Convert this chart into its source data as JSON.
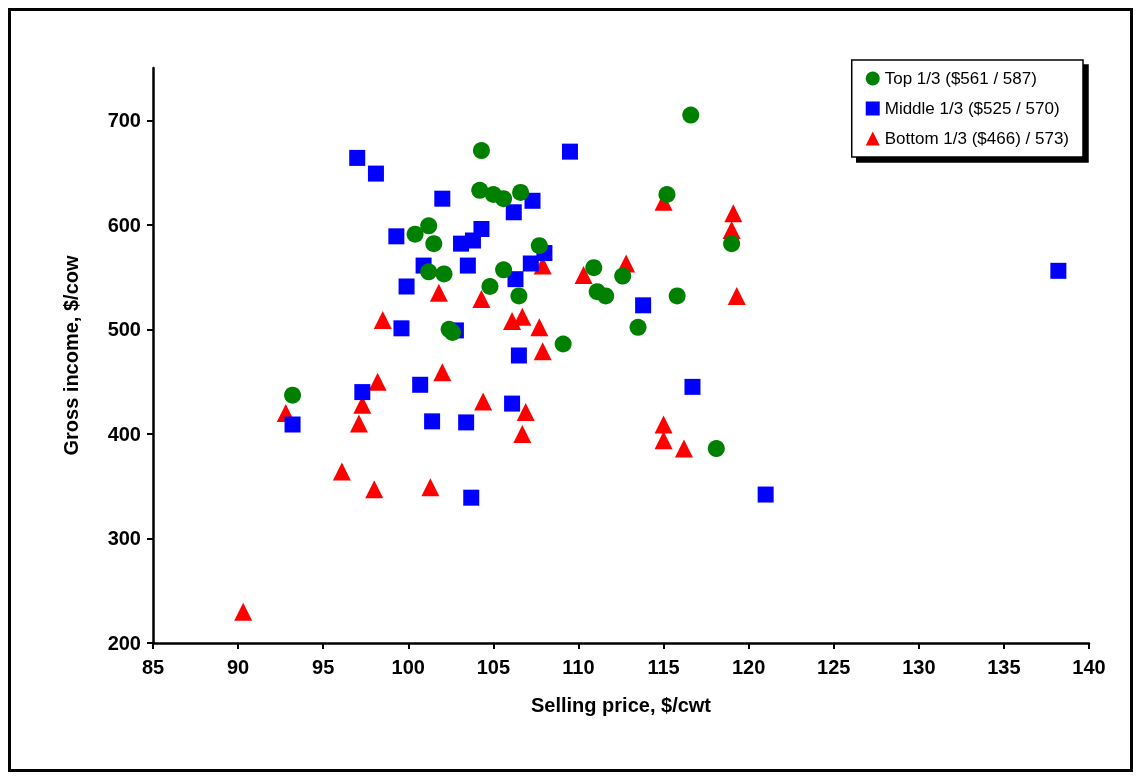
{
  "chart_data": {
    "type": "scatter",
    "xlabel": "Selling price, $/cwt",
    "ylabel": "Gross income, $/cow",
    "xlim": [
      85,
      140
    ],
    "xticks": [
      85,
      90,
      95,
      100,
      105,
      110,
      115,
      120,
      125,
      130,
      135,
      140
    ],
    "ylim": [
      200,
      750
    ],
    "yticks": [
      200,
      300,
      400,
      500,
      600,
      700
    ],
    "grid": false,
    "legend": "top right",
    "series": [
      {
        "name": "Top 1/3 ($561 / 587)",
        "color": "#008000",
        "marker": "circle",
        "x": [
          93.2,
          104.3,
          104.2,
          105.0,
          105.6,
          106.6,
          100.4,
          101.2,
          101.5,
          101.2,
          102.1,
          105.6,
          104.8,
          106.5,
          107.7,
          102.4,
          102.6,
          109.1,
          116.6,
          115.2,
          119.0,
          110.9,
          112.6,
          111.1,
          111.6,
          115.8,
          113.5,
          118.1
        ],
        "values": [
          437,
          671,
          633,
          629,
          625,
          631,
          591,
          599,
          582,
          555,
          553,
          557,
          541,
          532,
          580,
          500,
          497,
          486,
          705,
          629,
          582,
          559,
          551,
          536,
          532,
          532,
          502,
          386
        ]
      },
      {
        "name": "Middle 1/3 ($525 / 570)",
        "color": "#0000ff",
        "marker": "square",
        "x": [
          97.0,
          98.1,
          102.0,
          99.3,
          104.3,
          103.8,
          103.1,
          107.3,
          106.2,
          108.0,
          107.2,
          103.5,
          100.9,
          106.3,
          99.9,
          99.6,
          102.8,
          106.5,
          109.5,
          113.8,
          116.7,
          121.0,
          138.2,
          97.3,
          93.2,
          100.7,
          101.4,
          103.4,
          106.1,
          103.7
        ],
        "values": [
          664,
          649,
          625,
          589,
          596,
          585,
          582,
          623,
          612,
          573,
          563,
          561,
          561,
          548,
          541,
          501,
          499,
          475,
          670,
          523,
          445,
          342,
          556,
          440,
          409,
          447,
          412,
          411,
          429,
          339
        ]
      },
      {
        "name": "Bottom 1/3 ($466) / 573)",
        "color": "#ff0000",
        "marker": "triangle",
        "x": [
          92.8,
          98.2,
          97.3,
          97.1,
          102.0,
          104.4,
          106.9,
          106.7,
          96.1,
          98.0,
          101.3,
          90.3,
          101.8,
          104.3,
          98.5,
          106.1,
          106.7,
          107.7,
          107.9,
          107.9,
          115.0,
          119.1,
          119.0,
          112.8,
          110.3,
          119.3,
          115.0,
          115.0,
          116.2
        ],
        "values": [
          420,
          450,
          428,
          410,
          459,
          431,
          421,
          400,
          364,
          347,
          349,
          230,
          535,
          529,
          509,
          508,
          512,
          502,
          479,
          561,
          622,
          611,
          595,
          563,
          552,
          532,
          409,
          394,
          386
        ]
      }
    ]
  }
}
